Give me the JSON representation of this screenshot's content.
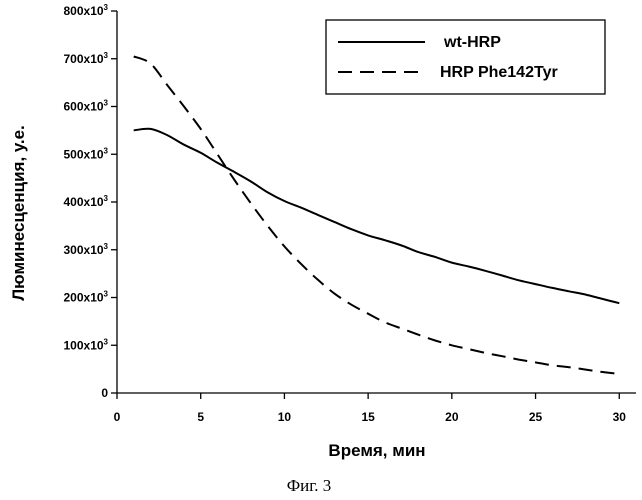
{
  "chart_data": {
    "type": "line",
    "xlabel": "Время, мин",
    "ylabel": "Люминесценция, у.е.",
    "caption": "Фиг. 3",
    "xlim": [
      0,
      31
    ],
    "ylim": [
      0,
      800000
    ],
    "x_ticks": [
      {
        "value": 0,
        "label": "0"
      },
      {
        "value": 5,
        "label": "5"
      },
      {
        "value": 10,
        "label": "10"
      },
      {
        "value": 15,
        "label": "15"
      },
      {
        "value": 20,
        "label": "20"
      },
      {
        "value": 25,
        "label": "25"
      },
      {
        "value": 30,
        "label": "30"
      }
    ],
    "y_ticks": [
      {
        "value": 0,
        "label": "0",
        "exp": ""
      },
      {
        "value": 100000,
        "label": "100x10",
        "exp": "3"
      },
      {
        "value": 200000,
        "label": "200x10",
        "exp": "3"
      },
      {
        "value": 300000,
        "label": "300x10",
        "exp": "3"
      },
      {
        "value": 400000,
        "label": "400x10",
        "exp": "3"
      },
      {
        "value": 500000,
        "label": "500x10",
        "exp": "3"
      },
      {
        "value": 600000,
        "label": "600x10",
        "exp": "3"
      },
      {
        "value": 700000,
        "label": "700x10",
        "exp": "3"
      },
      {
        "value": 800000,
        "label": "800x10",
        "exp": "3"
      }
    ],
    "grid": false,
    "legend_position": "top-right",
    "series": [
      {
        "name": "wt-HRP",
        "style": "solid",
        "color": "#000000",
        "x": [
          1,
          2,
          3,
          4,
          5,
          6,
          7,
          8,
          9,
          10,
          11,
          12,
          13,
          14,
          15,
          16,
          17,
          18,
          19,
          20,
          21,
          22,
          23,
          24,
          25,
          26,
          27,
          28,
          29,
          30
        ],
        "y": [
          550000,
          553000,
          540000,
          520000,
          503000,
          482000,
          463000,
          443000,
          420000,
          402000,
          388000,
          373000,
          358000,
          343000,
          330000,
          320000,
          309000,
          295000,
          285000,
          273000,
          265000,
          256000,
          246000,
          236000,
          228000,
          220000,
          213000,
          206000,
          197000,
          188000
        ]
      },
      {
        "name": "HRP Phe142Tyr",
        "style": "dashed",
        "color": "#000000",
        "x": [
          1,
          2,
          3,
          4,
          5,
          6,
          7,
          8,
          9,
          10,
          11,
          12,
          13,
          14,
          15,
          16,
          17,
          18,
          19,
          20,
          21,
          22,
          23,
          24,
          25,
          26,
          27,
          28,
          29,
          30
        ],
        "y": [
          705000,
          690000,
          645000,
          600000,
          553000,
          500000,
          447000,
          397000,
          350000,
          307000,
          270000,
          237000,
          208000,
          185000,
          166000,
          148000,
          135000,
          122000,
          110000,
          100000,
          92000,
          84000,
          77000,
          70000,
          64000,
          58000,
          54000,
          49000,
          44000,
          40000
        ]
      }
    ]
  }
}
